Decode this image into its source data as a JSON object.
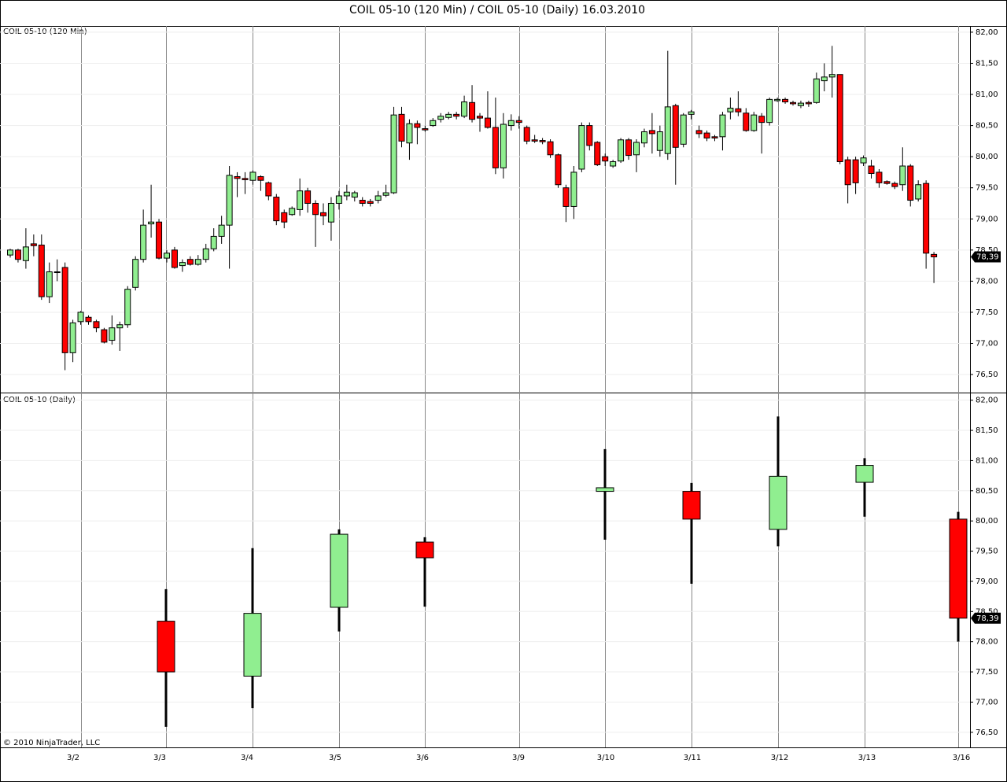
{
  "title": "COIL 05-10 (120 Min) / COIL 05-10 (Daily)  16.03.2010",
  "copyright": "© 2010 NinjaTrader, LLC",
  "chart_data": [
    {
      "type": "candlestick",
      "name": "COIL 05-10 (120 Min)",
      "up_color": "#90ee90",
      "down_color": "#ff0000",
      "open": [
        78.42,
        78.5,
        78.33,
        78.6,
        78.58,
        77.75,
        78.15,
        78.22,
        76.85,
        77.35,
        77.42,
        77.35,
        77.22,
        77.05,
        77.25,
        77.3,
        77.9,
        78.35,
        78.92,
        78.95,
        78.37,
        78.5,
        78.25,
        78.35,
        78.27,
        78.35,
        78.52,
        78.72,
        78.9,
        79.68,
        79.65,
        79.62,
        79.68,
        79.58,
        79.35,
        79.1,
        79.07,
        79.15,
        79.45,
        79.25,
        79.1,
        78.95,
        79.25,
        79.37,
        79.35,
        79.3,
        79.28,
        79.3,
        79.38,
        79.42,
        80.68,
        80.22,
        80.53,
        80.45,
        80.5,
        80.6,
        80.63,
        80.68,
        80.65,
        80.87,
        80.65,
        80.62,
        80.47,
        79.82,
        80.5,
        80.58,
        80.47,
        80.27,
        80.26,
        80.24,
        80.03,
        79.5,
        79.2,
        79.8,
        80.5,
        80.23,
        80.0,
        79.85,
        79.93,
        80.27,
        80.03,
        80.22,
        80.42,
        80.1,
        80.05,
        80.82,
        80.2,
        80.68,
        80.42,
        80.38,
        80.32,
        80.32,
        80.72,
        80.77,
        80.7,
        80.42,
        80.65,
        80.55,
        80.9,
        80.92,
        80.87,
        80.82,
        80.87,
        80.87,
        81.22,
        81.28,
        81.32,
        79.95,
        79.95,
        79.9,
        79.85,
        79.75,
        79.6,
        79.57,
        79.55,
        79.85,
        79.32,
        79.57,
        78.43
      ],
      "high": [
        78.52,
        78.52,
        78.85,
        78.75,
        78.75,
        78.3,
        78.35,
        78.3,
        77.38,
        77.52,
        77.45,
        77.38,
        77.25,
        77.45,
        77.35,
        77.92,
        78.4,
        79.15,
        79.55,
        79.0,
        78.5,
        78.55,
        78.35,
        78.4,
        78.42,
        78.6,
        78.85,
        79.05,
        79.85,
        79.75,
        79.75,
        79.78,
        79.7,
        79.6,
        79.4,
        79.15,
        79.2,
        79.65,
        79.5,
        79.3,
        79.25,
        79.35,
        79.45,
        79.55,
        79.45,
        79.35,
        79.32,
        79.45,
        79.55,
        80.8,
        80.8,
        80.6,
        80.58,
        80.5,
        80.62,
        80.7,
        80.72,
        80.72,
        80.98,
        81.15,
        80.7,
        81.05,
        80.95,
        80.7,
        80.68,
        80.65,
        80.5,
        80.35,
        80.3,
        80.28,
        80.05,
        79.55,
        79.85,
        80.55,
        80.55,
        80.25,
        80.05,
        79.95,
        80.3,
        80.3,
        80.28,
        80.45,
        80.7,
        80.5,
        81.7,
        80.85,
        80.7,
        80.75,
        80.5,
        80.42,
        80.35,
        80.72,
        80.95,
        81.05,
        80.78,
        80.72,
        80.7,
        80.95,
        80.95,
        80.95,
        80.9,
        80.9,
        80.9,
        81.35,
        81.5,
        81.78,
        81.32,
        80.0,
        80.0,
        80.02,
        79.95,
        79.8,
        79.62,
        79.6,
        80.15,
        79.88,
        79.62,
        79.62,
        78.47
      ],
      "low": [
        78.38,
        78.3,
        78.2,
        78.4,
        77.7,
        77.65,
        78.0,
        76.57,
        76.7,
        77.3,
        77.3,
        77.18,
        77.0,
        76.98,
        76.88,
        77.25,
        77.85,
        78.3,
        78.7,
        78.35,
        78.3,
        78.2,
        78.15,
        78.25,
        78.25,
        78.3,
        78.48,
        78.6,
        78.2,
        79.35,
        79.4,
        79.55,
        79.45,
        79.3,
        78.9,
        78.85,
        79.05,
        79.05,
        79.1,
        78.55,
        78.9,
        78.65,
        79.15,
        79.3,
        79.28,
        79.2,
        79.2,
        79.25,
        79.35,
        79.4,
        80.15,
        79.95,
        80.2,
        80.4,
        80.48,
        80.55,
        80.6,
        80.6,
        80.62,
        80.55,
        80.4,
        80.45,
        79.72,
        79.65,
        80.42,
        80.45,
        80.2,
        80.22,
        80.2,
        79.98,
        79.5,
        78.95,
        79.0,
        79.75,
        80.1,
        79.85,
        79.85,
        79.82,
        79.9,
        79.95,
        79.75,
        80.15,
        80.05,
        80.0,
        79.95,
        79.55,
        80.15,
        80.6,
        80.3,
        80.25,
        80.25,
        80.1,
        80.6,
        80.65,
        80.4,
        80.4,
        80.05,
        80.5,
        80.88,
        80.85,
        80.82,
        80.78,
        80.8,
        80.85,
        81.05,
        80.95,
        79.88,
        79.25,
        79.4,
        79.85,
        79.65,
        79.5,
        79.55,
        79.48,
        79.45,
        79.2,
        79.28,
        78.2,
        77.97
      ],
      "close": [
        78.5,
        78.35,
        78.55,
        78.57,
        77.75,
        78.15,
        78.14,
        76.85,
        77.33,
        77.5,
        77.35,
        77.25,
        77.02,
        77.25,
        77.3,
        77.87,
        78.35,
        78.9,
        78.95,
        78.37,
        78.45,
        78.22,
        78.3,
        78.27,
        78.35,
        78.52,
        78.72,
        78.9,
        79.7,
        79.65,
        79.63,
        79.75,
        79.62,
        79.37,
        78.97,
        78.95,
        79.17,
        79.45,
        79.25,
        79.07,
        79.05,
        79.25,
        79.37,
        79.43,
        79.42,
        79.25,
        79.25,
        79.37,
        79.42,
        80.67,
        80.25,
        80.53,
        80.47,
        80.43,
        80.58,
        80.65,
        80.68,
        80.65,
        80.88,
        80.6,
        80.62,
        80.47,
        79.82,
        80.52,
        80.58,
        80.55,
        80.25,
        80.25,
        80.24,
        80.03,
        79.55,
        79.2,
        79.75,
        80.5,
        80.18,
        79.87,
        79.93,
        79.92,
        80.27,
        80.02,
        80.23,
        80.4,
        80.37,
        80.4,
        80.8,
        80.15,
        80.67,
        80.72,
        80.37,
        80.3,
        80.3,
        80.67,
        80.78,
        80.72,
        80.42,
        80.67,
        80.55,
        80.92,
        80.92,
        80.88,
        80.85,
        80.86,
        80.85,
        81.25,
        81.28,
        81.32,
        79.92,
        79.55,
        79.58,
        79.98,
        79.73,
        79.58,
        79.57,
        79.52,
        79.85,
        79.3,
        79.55,
        78.45,
        78.39
      ],
      "ylim": [
        76.21,
        82.1
      ],
      "yticks": [
        {
          "value": 76.5,
          "label": "76,50"
        },
        {
          "value": 77,
          "label": "77,00"
        },
        {
          "value": 77.5,
          "label": "77,50"
        },
        {
          "value": 78,
          "label": "78,00"
        },
        {
          "value": 78.5,
          "label": "78,50"
        },
        {
          "value": 79,
          "label": "79,00"
        },
        {
          "value": 79.5,
          "label": "79,50"
        },
        {
          "value": 80,
          "label": "80,00"
        },
        {
          "value": 80.5,
          "label": "80,50"
        },
        {
          "value": 81,
          "label": "81,00"
        },
        {
          "value": 81.5,
          "label": "81,50"
        },
        {
          "value": 82,
          "label": "82,00"
        }
      ],
      "last_price": {
        "value": 78.39,
        "label": "78,39"
      },
      "grid": true
    },
    {
      "type": "candlestick",
      "name": "COIL 05-10 (Daily)",
      "up_color": "#90ee90",
      "down_color": "#ff0000",
      "categories": [
        "3/2",
        "3/3",
        "3/4",
        "3/5",
        "3/6",
        "3/9",
        "3/10",
        "3/11",
        "3/12",
        "3/13",
        "3/16"
      ],
      "open": [
        null,
        78.34,
        77.43,
        78.57,
        79.65,
        null,
        80.49,
        80.49,
        79.86,
        80.64,
        80.03
      ],
      "high": [
        null,
        78.87,
        79.55,
        79.86,
        79.73,
        null,
        81.19,
        80.63,
        81.73,
        81.04,
        80.15
      ],
      "low": [
        null,
        76.59,
        76.9,
        78.17,
        78.58,
        null,
        79.69,
        78.96,
        79.58,
        80.07,
        78.0
      ],
      "close": [
        null,
        77.5,
        78.47,
        79.78,
        79.39,
        null,
        80.55,
        80.03,
        80.74,
        80.92,
        78.39
      ],
      "ylim": [
        76.25,
        82.1
      ],
      "yticks": [
        {
          "value": 76.5,
          "label": "76,50"
        },
        {
          "value": 77,
          "label": "77,00"
        },
        {
          "value": 77.5,
          "label": "77,50"
        },
        {
          "value": 78,
          "label": "78,00"
        },
        {
          "value": 78.5,
          "label": "78,50"
        },
        {
          "value": 79,
          "label": "79,00"
        },
        {
          "value": 79.5,
          "label": "79,50"
        },
        {
          "value": 80,
          "label": "80,00"
        },
        {
          "value": 80.5,
          "label": "80,50"
        },
        {
          "value": 81,
          "label": "81,00"
        },
        {
          "value": 81.5,
          "label": "81,50"
        },
        {
          "value": 82,
          "label": "82,00"
        }
      ],
      "last_price": {
        "value": 78.39,
        "label": "78,39"
      },
      "grid": true
    }
  ]
}
